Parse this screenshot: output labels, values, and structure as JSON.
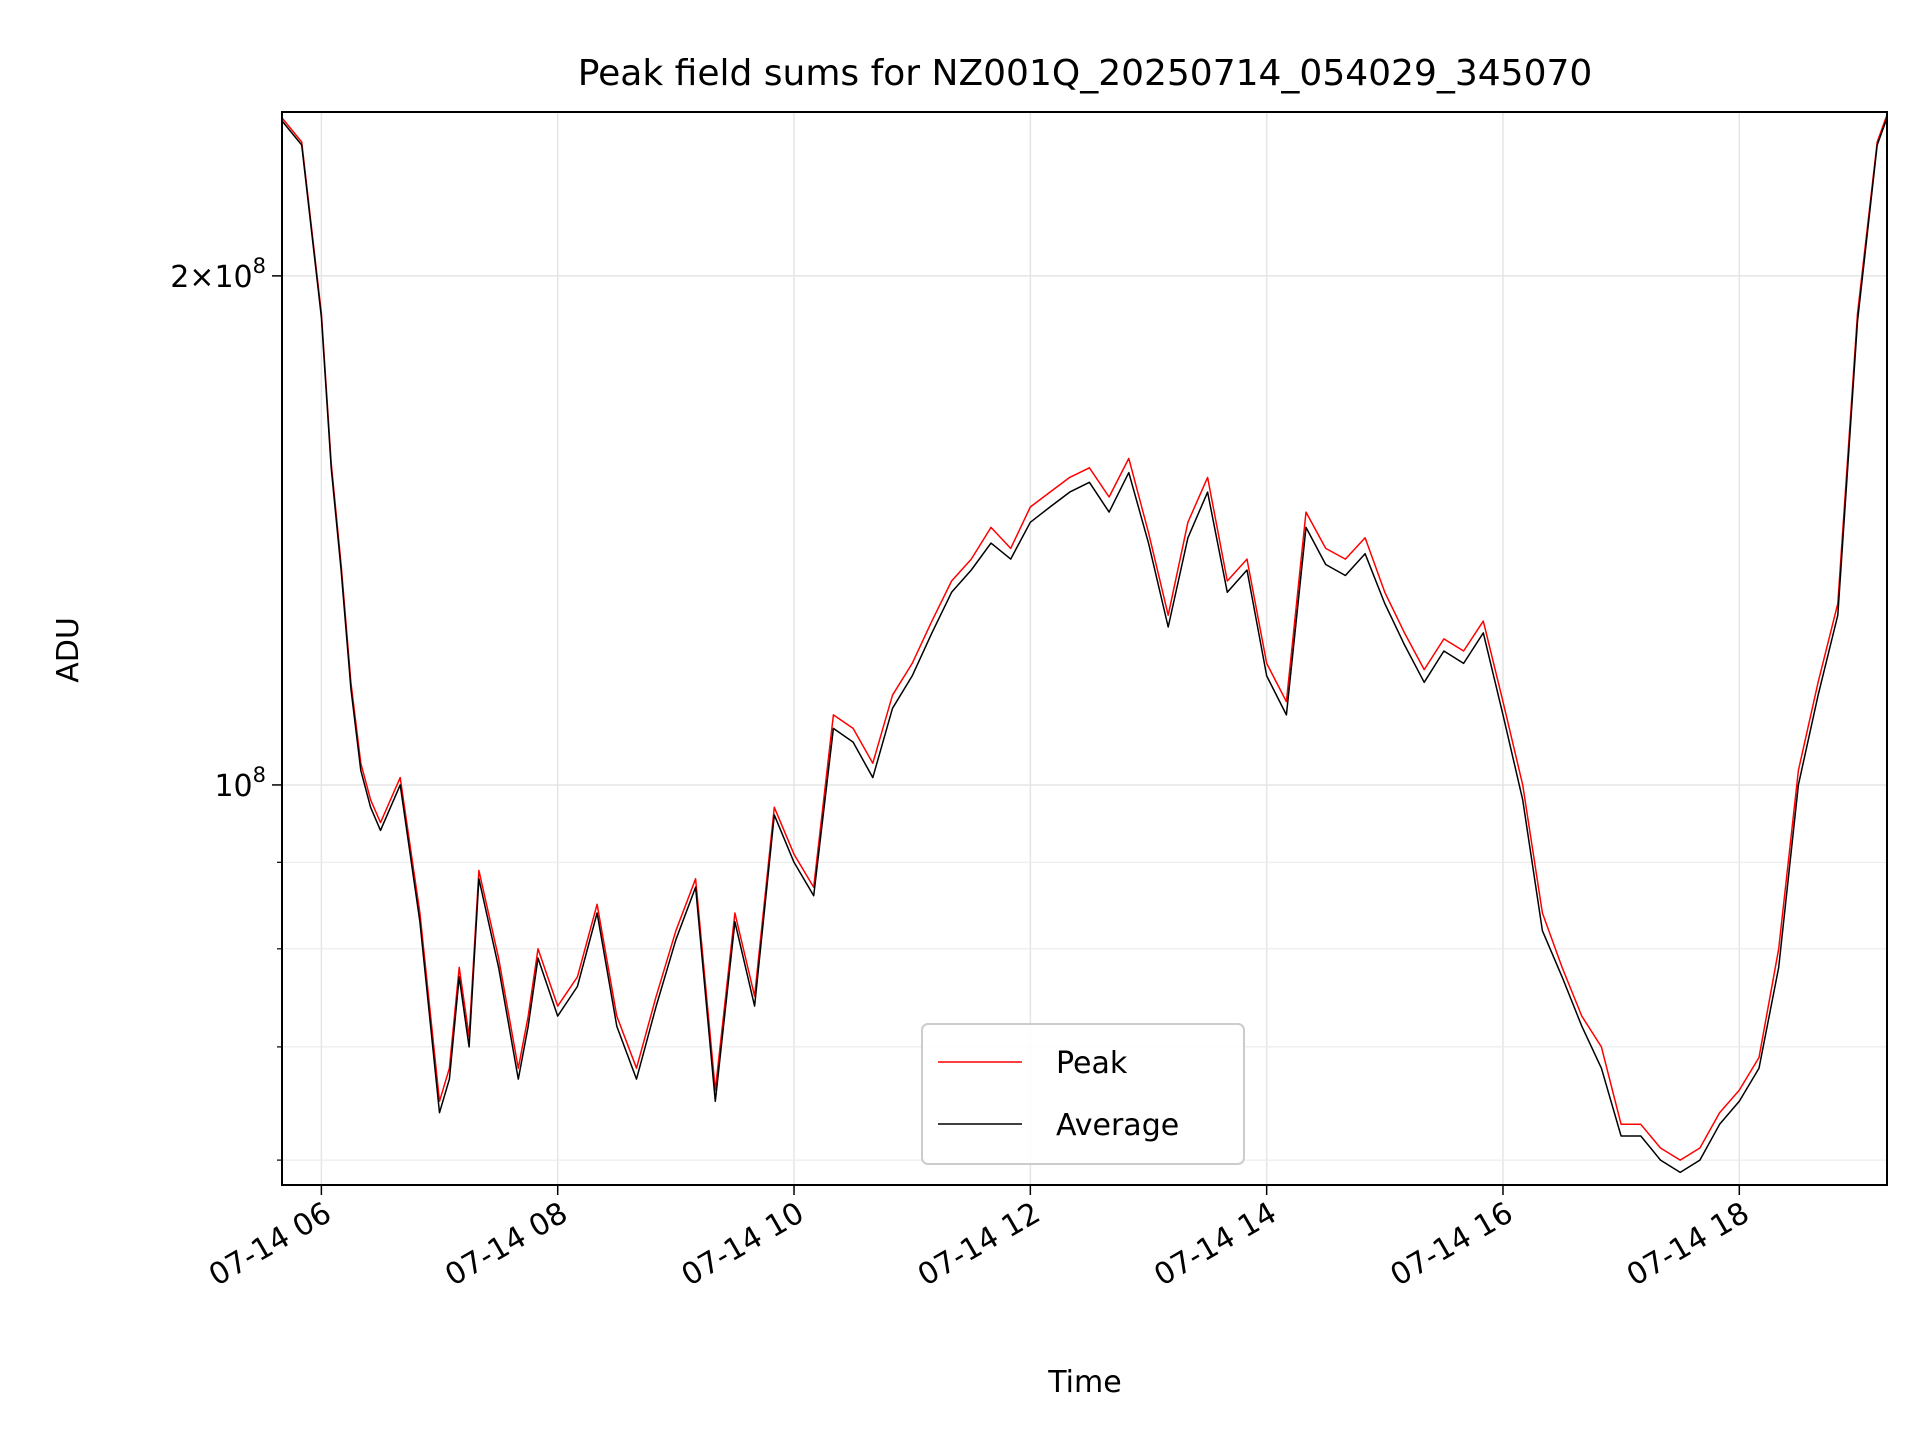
{
  "chart_data": {
    "type": "line",
    "title": "Peak field sums for NZ001Q_20250714_054029_345070",
    "xlabel": "Time",
    "ylabel": "ADU",
    "y_scale": "log",
    "x_tick_labels": [
      "07-14 06",
      "07-14 08",
      "07-14 10",
      "07-14 12",
      "07-14 14",
      "07-14 16",
      "07-14 18"
    ],
    "y_tick_labels": [
      {
        "mantissa": "2",
        "times": "×",
        "base": "10",
        "exp": "8"
      },
      {
        "mantissa": "",
        "times": "",
        "base": "10",
        "exp": "8"
      }
    ],
    "xlim": [
      "2025-07-14 05:40",
      "2025-07-14 19:15"
    ],
    "ylim": [
      58000000,
      250000000
    ],
    "grid": true,
    "legend_position": "lower-center",
    "series": [
      {
        "name": "Peak",
        "color": "#ff0000"
      },
      {
        "name": "Average",
        "color": "#000000"
      }
    ],
    "x": [
      "05:40",
      "05:50",
      "06:00",
      "06:05",
      "06:10",
      "06:15",
      "06:20",
      "06:25",
      "06:30",
      "06:40",
      "06:50",
      "07:00",
      "07:05",
      "07:10",
      "07:15",
      "07:20",
      "07:30",
      "07:40",
      "07:45",
      "07:50",
      "08:00",
      "08:10",
      "08:20",
      "08:30",
      "08:40",
      "08:50",
      "09:00",
      "09:10",
      "09:20",
      "09:30",
      "09:40",
      "09:50",
      "10:00",
      "10:10",
      "10:20",
      "10:30",
      "10:40",
      "10:50",
      "11:00",
      "11:10",
      "11:20",
      "11:30",
      "11:40",
      "11:50",
      "12:00",
      "12:10",
      "12:20",
      "12:30",
      "12:40",
      "12:50",
      "13:00",
      "13:10",
      "13:20",
      "13:30",
      "13:40",
      "13:50",
      "14:00",
      "14:10",
      "14:20",
      "14:30",
      "14:40",
      "14:50",
      "15:00",
      "15:10",
      "15:20",
      "15:30",
      "15:40",
      "15:50",
      "16:00",
      "16:10",
      "16:20",
      "16:30",
      "16:40",
      "16:50",
      "17:00",
      "17:10",
      "17:20",
      "17:30",
      "17:40",
      "17:50",
      "18:00",
      "18:10",
      "18:20",
      "18:30",
      "18:40",
      "18:50",
      "19:00",
      "19:10",
      "19:15"
    ],
    "peak": [
      248000000,
      240000000,
      190000000,
      155000000,
      135000000,
      115000000,
      103000000,
      98000000,
      95000000,
      101000000,
      84000000,
      65000000,
      68000000,
      78000000,
      71000000,
      89000000,
      79000000,
      68000000,
      73000000,
      80000000,
      74000000,
      77000000,
      85000000,
      73000000,
      68000000,
      75000000,
      82000000,
      88000000,
      66000000,
      84000000,
      75000000,
      97000000,
      91000000,
      87000000,
      110000000,
      108000000,
      103000000,
      113000000,
      118000000,
      125000000,
      132000000,
      136000000,
      142000000,
      138000000,
      146000000,
      149000000,
      152000000,
      154000000,
      148000000,
      156000000,
      141000000,
      126000000,
      143000000,
      152000000,
      132000000,
      136000000,
      118000000,
      112000000,
      145000000,
      138000000,
      136000000,
      140000000,
      130000000,
      123000000,
      117000000,
      122000000,
      120000000,
      125000000,
      112000000,
      100000000,
      84000000,
      78000000,
      73000000,
      70000000,
      63000000,
      63000000,
      61000000,
      60000000,
      61000000,
      64000000,
      66000000,
      69000000,
      80000000,
      102000000,
      115000000,
      128000000,
      190000000,
      240000000,
      249000000
    ],
    "average": [
      247000000,
      239000000,
      189000000,
      154000000,
      134000000,
      114000000,
      102000000,
      97000000,
      94000000,
      100000000,
      83000000,
      64000000,
      67000000,
      77000000,
      70000000,
      88000000,
      78000000,
      67000000,
      72000000,
      79000000,
      73000000,
      76000000,
      84000000,
      72000000,
      67000000,
      74000000,
      81000000,
      87000000,
      65000000,
      83000000,
      74000000,
      96000000,
      90000000,
      86000000,
      108000000,
      106000000,
      101000000,
      111000000,
      116000000,
      123000000,
      130000000,
      134000000,
      139000000,
      136000000,
      143000000,
      146000000,
      149000000,
      151000000,
      145000000,
      153000000,
      139000000,
      124000000,
      140000000,
      149000000,
      130000000,
      134000000,
      116000000,
      110000000,
      142000000,
      135000000,
      133000000,
      137000000,
      128000000,
      121000000,
      115000000,
      120000000,
      118000000,
      123000000,
      110000000,
      98000000,
      82000000,
      77000000,
      72000000,
      68000000,
      62000000,
      62000000,
      60000000,
      59000000,
      60000000,
      63000000,
      65000000,
      68000000,
      78000000,
      100000000,
      113000000,
      126000000,
      188000000,
      239000000,
      248000000
    ]
  }
}
